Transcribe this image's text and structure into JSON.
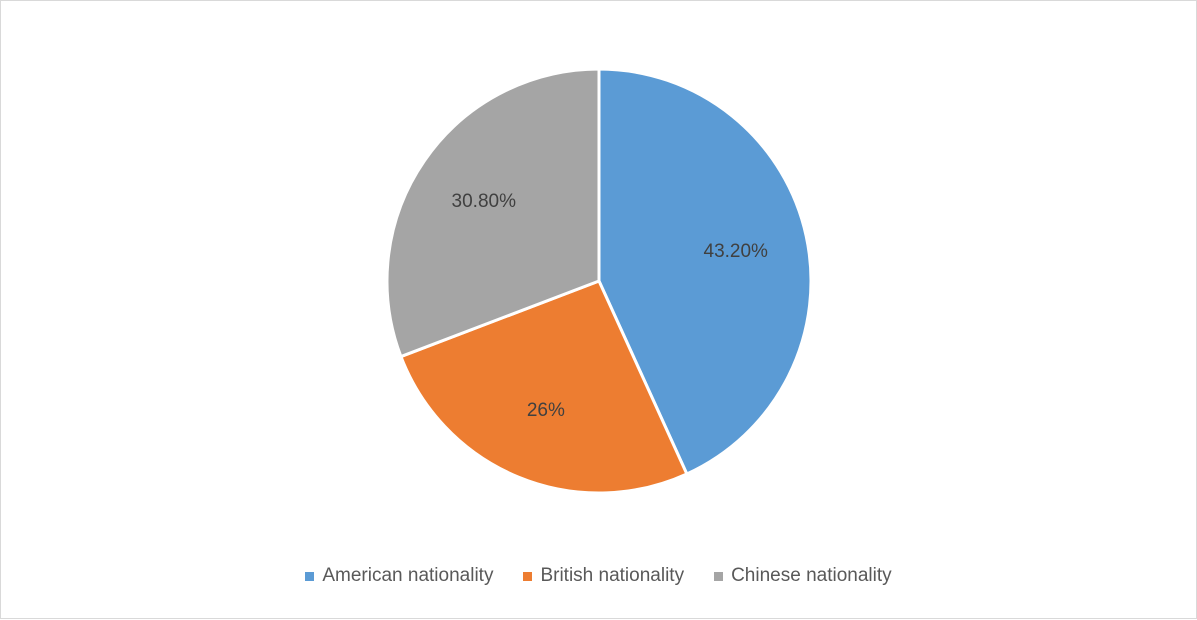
{
  "chart_data": {
    "type": "pie",
    "categories": [
      "American nationality",
      "British nationality",
      "Chinese nationality"
    ],
    "values": [
      43.2,
      26,
      30.8
    ],
    "data_labels": [
      "43.20%",
      "26%",
      "30.80%"
    ],
    "colors": [
      "#5b9bd5",
      "#ed7d31",
      "#a5a5a5"
    ],
    "start_angle_deg": 0,
    "direction": "clockwise",
    "legend_position": "bottom",
    "title": ""
  }
}
